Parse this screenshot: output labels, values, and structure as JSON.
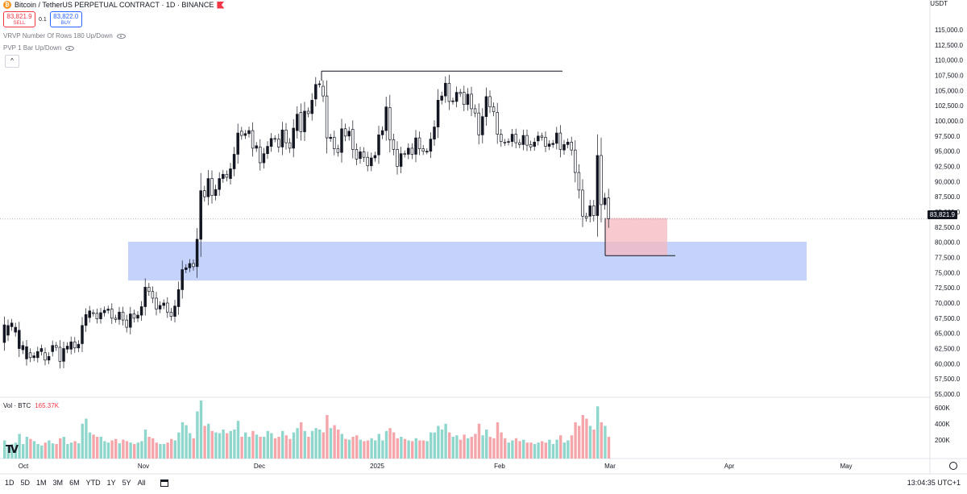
{
  "header": {
    "title": "Bitcoin / TetherUS PERPETUAL CONTRACT · 1D · BINANCE",
    "icon": "bitcoin-icon"
  },
  "trade": {
    "sell_price": "83,821.9",
    "sell_label": "SELL",
    "spread": "0.1",
    "buy_price": "83,822.0",
    "buy_label": "BUY"
  },
  "indicators": [
    {
      "label": "VRVP Number Of Rows 180 Up/Down"
    },
    {
      "label": "PVP 1 Bar Up/Down"
    }
  ],
  "volume": {
    "label": "Vol · BTC",
    "value": "165.37K"
  },
  "currency": "USDT",
  "last_price": "83,821.9",
  "time_buttons": [
    "1D",
    "5D",
    "1M",
    "3M",
    "6M",
    "YTD",
    "1Y",
    "5Y",
    "All"
  ],
  "clock": "13:04:35 UTC+1",
  "colors": {
    "up": "#089981",
    "down": "#f23645",
    "zone": "#c5d3fb",
    "vol_up": "#8fd6cc",
    "vol_down": "#f5a6ab"
  },
  "chart_data": {
    "type": "candlestick",
    "price_ticks": [
      "115,000.0",
      "112,500.0",
      "110,000.0",
      "107,500.0",
      "105,000.0",
      "102,500.0",
      "100,000.0",
      "97,500.0",
      "95,000.0",
      "92,500.0",
      "90,000.0",
      "87,500.0",
      "85,000.0",
      "82,500.0",
      "80,000.0",
      "77,500.0",
      "75,000.0",
      "72,500.0",
      "70,000.0",
      "67,500.0",
      "65,000.0",
      "62,500.0",
      "60,000.0",
      "57,500.0",
      "55,000.0"
    ],
    "volume_ticks": [
      "600K",
      "400K",
      "200K"
    ],
    "time_ticks": [
      "Oct",
      "Nov",
      "Dec",
      "2025",
      "Feb",
      "Mar",
      "Apr",
      "May"
    ],
    "ylim": [
      55000,
      115000
    ],
    "zone": {
      "low": 73700,
      "high": 80100
    },
    "highs_line": 108200,
    "box": {
      "low": 77800,
      "high": 84000
    },
    "last": 83821.9,
    "candles": [
      [
        63500,
        66400
      ],
      [
        64700,
        66300
      ],
      [
        66100,
        66700
      ],
      [
        65200,
        66000
      ],
      [
        62500,
        65500
      ],
      [
        62300,
        63000
      ],
      [
        60800,
        62800
      ],
      [
        61800,
        61000
      ],
      [
        61000,
        61300
      ],
      [
        61000,
        62000
      ],
      [
        62000,
        62500
      ],
      [
        61800,
        60600
      ],
      [
        60600,
        61200
      ],
      [
        62000,
        63000
      ],
      [
        63000,
        62700
      ],
      [
        62700,
        60400
      ],
      [
        60400,
        62500
      ],
      [
        62400,
        62900
      ],
      [
        62400,
        63600
      ],
      [
        63600,
        62600
      ],
      [
        62600,
        63200
      ],
      [
        63300,
        66300
      ],
      [
        66300,
        68100
      ],
      [
        67600,
        68700
      ],
      [
        68400,
        68300
      ],
      [
        68300,
        67400
      ],
      [
        67400,
        68400
      ],
      [
        68400,
        68800
      ],
      [
        68800,
        69000
      ],
      [
        69000,
        67500
      ],
      [
        67500,
        67300
      ],
      [
        67300,
        68500
      ],
      [
        68500,
        67200
      ],
      [
        67200,
        66000
      ],
      [
        66000,
        68200
      ],
      [
        68200,
        67500
      ],
      [
        67500,
        68000
      ],
      [
        68000,
        69400
      ],
      [
        69400,
        72600
      ],
      [
        72600,
        71900
      ],
      [
        71900,
        70800
      ],
      [
        70800,
        69000
      ],
      [
        69000,
        69600
      ],
      [
        69600,
        70000
      ],
      [
        70000,
        68500
      ],
      [
        68500,
        67800
      ],
      [
        67800,
        69500
      ],
      [
        69400,
        72200
      ],
      [
        72200,
        75500
      ],
      [
        75500,
        75800
      ],
      [
        75800,
        76500
      ],
      [
        76500,
        76000
      ],
      [
        76000,
        80500
      ],
      [
        80500,
        88500
      ],
      [
        88500,
        87500
      ],
      [
        87500,
        90500
      ],
      [
        90500,
        87700
      ],
      [
        87700,
        88700
      ],
      [
        88700,
        90500
      ],
      [
        90500,
        91200
      ],
      [
        91200,
        90700
      ],
      [
        90500,
        92100
      ],
      [
        92100,
        94500
      ],
      [
        94500,
        98000
      ],
      [
        98300,
        97600
      ],
      [
        97600,
        97900
      ],
      [
        97900,
        98400
      ],
      [
        98400,
        95500
      ],
      [
        95500,
        95900
      ],
      [
        95700,
        93100
      ],
      [
        93100,
        94600
      ],
      [
        94600,
        95800
      ],
      [
        95800,
        97100
      ],
      [
        97100,
        97000
      ],
      [
        97000,
        95700
      ],
      [
        95700,
        98500
      ],
      [
        98500,
        96400
      ],
      [
        96400,
        95500
      ],
      [
        95500,
        98800
      ],
      [
        98400,
        101100
      ],
      [
        101400,
        98200
      ],
      [
        98200,
        101600
      ],
      [
        101600,
        101200
      ],
      [
        101200,
        103400
      ],
      [
        103600,
        106000
      ],
      [
        106000,
        106100
      ],
      [
        105700,
        104100
      ],
      [
        104100,
        97200
      ],
      [
        97100,
        97300
      ],
      [
        97300,
        95400
      ],
      [
        95400,
        94800
      ],
      [
        94800,
        98700
      ],
      [
        98700,
        97500
      ],
      [
        97500,
        98300
      ],
      [
        98600,
        95300
      ],
      [
        95300,
        93700
      ],
      [
        93800,
        94900
      ],
      [
        94900,
        94000
      ],
      [
        94000,
        92600
      ],
      [
        92600,
        93900
      ],
      [
        93900,
        94300
      ],
      [
        94400,
        97700
      ],
      [
        97700,
        98400
      ],
      [
        98400,
        102300
      ],
      [
        102200,
        96900
      ],
      [
        96900,
        95300
      ],
      [
        95300,
        92500
      ],
      [
        92500,
        94600
      ],
      [
        94600,
        94500
      ],
      [
        94500,
        95500
      ],
      [
        95500,
        94500
      ],
      [
        94500,
        97200
      ],
      [
        97200,
        95400
      ],
      [
        95400,
        95000
      ],
      [
        95000,
        95000
      ],
      [
        95000,
        97000
      ],
      [
        97000,
        99000
      ],
      [
        99000,
        103400
      ],
      [
        103400,
        104100
      ],
      [
        104100,
        106200
      ],
      [
        106200,
        103200
      ],
      [
        103200,
        103300
      ],
      [
        103200,
        104700
      ],
      [
        104700,
        104500
      ],
      [
        104700,
        102700
      ],
      [
        102700,
        104400
      ],
      [
        104400,
        102000
      ],
      [
        102000,
        101300
      ],
      [
        101300,
        97700
      ],
      [
        97700,
        100700
      ],
      [
        100700,
        104000
      ],
      [
        104000,
        102300
      ],
      [
        102300,
        101500
      ],
      [
        101400,
        97800
      ],
      [
        97800,
        96600
      ],
      [
        96500,
        96400
      ],
      [
        96500,
        96600
      ],
      [
        96600,
        97800
      ],
      [
        97800,
        96400
      ],
      [
        96400,
        96100
      ],
      [
        96100,
        97600
      ],
      [
        97600,
        96000
      ],
      [
        96100,
        95700
      ],
      [
        95800,
        96500
      ],
      [
        96700,
        97500
      ],
      [
        97500,
        97300
      ],
      [
        97300,
        95800
      ],
      [
        95800,
        96200
      ],
      [
        96100,
        96300
      ],
      [
        96300,
        98000
      ],
      [
        98000,
        95300
      ],
      [
        95200,
        96100
      ],
      [
        96100,
        96500
      ],
      [
        96500,
        95200
      ],
      [
        95200,
        91500
      ],
      [
        91500,
        88600
      ],
      [
        88600,
        84300
      ],
      [
        84300,
        84000
      ],
      [
        84300,
        86000
      ],
      [
        86000,
        84400
      ],
      [
        84400,
        94300
      ],
      [
        94300,
        86200
      ],
      [
        86200,
        87300
      ],
      [
        87300,
        83900
      ]
    ],
    "volumes": [
      0.25,
      0.18,
      0.2,
      0.22,
      0.34,
      0.2,
      0.3,
      0.27,
      0.24,
      0.2,
      0.18,
      0.22,
      0.25,
      0.21,
      0.2,
      0.28,
      0.3,
      0.2,
      0.22,
      0.24,
      0.21,
      0.48,
      0.55,
      0.36,
      0.33,
      0.3,
      0.3,
      0.24,
      0.22,
      0.25,
      0.27,
      0.21,
      0.26,
      0.24,
      0.22,
      0.2,
      0.22,
      0.24,
      0.4,
      0.3,
      0.28,
      0.22,
      0.2,
      0.2,
      0.22,
      0.27,
      0.25,
      0.36,
      0.5,
      0.46,
      0.35,
      0.28,
      0.65,
      0.8,
      0.45,
      0.48,
      0.38,
      0.36,
      0.35,
      0.4,
      0.35,
      0.38,
      0.4,
      0.52,
      0.3,
      0.36,
      0.3,
      0.38,
      0.33,
      0.3,
      0.3,
      0.38,
      0.35,
      0.28,
      0.3,
      0.38,
      0.32,
      0.27,
      0.36,
      0.42,
      0.5,
      0.38,
      0.3,
      0.38,
      0.42,
      0.4,
      0.36,
      0.6,
      0.42,
      0.46,
      0.4,
      0.34,
      0.27,
      0.26,
      0.3,
      0.32,
      0.26,
      0.24,
      0.25,
      0.28,
      0.25,
      0.34,
      0.25,
      0.38,
      0.42,
      0.36,
      0.28,
      0.3,
      0.27,
      0.25,
      0.24,
      0.28,
      0.25,
      0.25,
      0.24,
      0.36,
      0.36,
      0.45,
      0.4,
      0.48,
      0.36,
      0.3,
      0.32,
      0.26,
      0.33,
      0.28,
      0.3,
      0.34,
      0.48,
      0.32,
      0.4,
      0.3,
      0.28,
      0.5,
      0.36,
      0.28,
      0.22,
      0.25,
      0.28,
      0.24,
      0.26,
      0.22,
      0.22,
      0.2,
      0.22,
      0.24,
      0.22,
      0.26,
      0.2,
      0.26,
      0.32,
      0.22,
      0.25,
      0.32,
      0.5,
      0.45,
      0.6,
      0.55,
      0.45,
      0.4,
      0.72,
      0.5,
      0.45,
      0.3
    ]
  }
}
